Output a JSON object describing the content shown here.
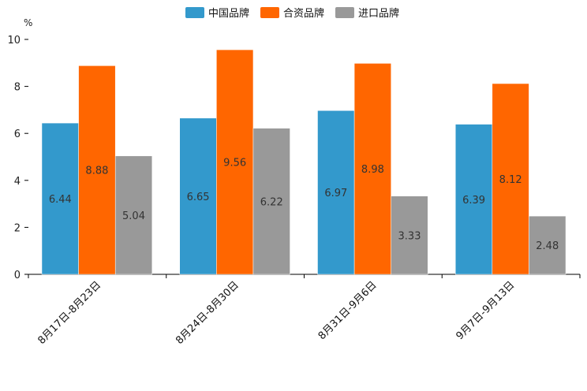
{
  "chart_data": {
    "type": "bar",
    "title": "",
    "xlabel": "",
    "ylabel": "%",
    "ylim": [
      0,
      10
    ],
    "yticks": [
      0,
      2,
      4,
      6,
      8,
      10
    ],
    "grid": false,
    "legend_position": "top-center",
    "categories": [
      "8月17日-8月23日",
      "8月24日-8月30日",
      "8月31日-9月6日",
      "9月7日-9月13日"
    ],
    "series": [
      {
        "name": "中国品牌",
        "color": "#3399cc",
        "values": [
          6.44,
          6.65,
          6.97,
          6.39
        ]
      },
      {
        "name": "合资品牌",
        "color": "#ff6600",
        "values": [
          8.88,
          9.56,
          8.98,
          8.12
        ]
      },
      {
        "name": "进口品牌",
        "color": "#999999",
        "values": [
          5.04,
          6.22,
          3.33,
          2.48
        ]
      }
    ]
  }
}
